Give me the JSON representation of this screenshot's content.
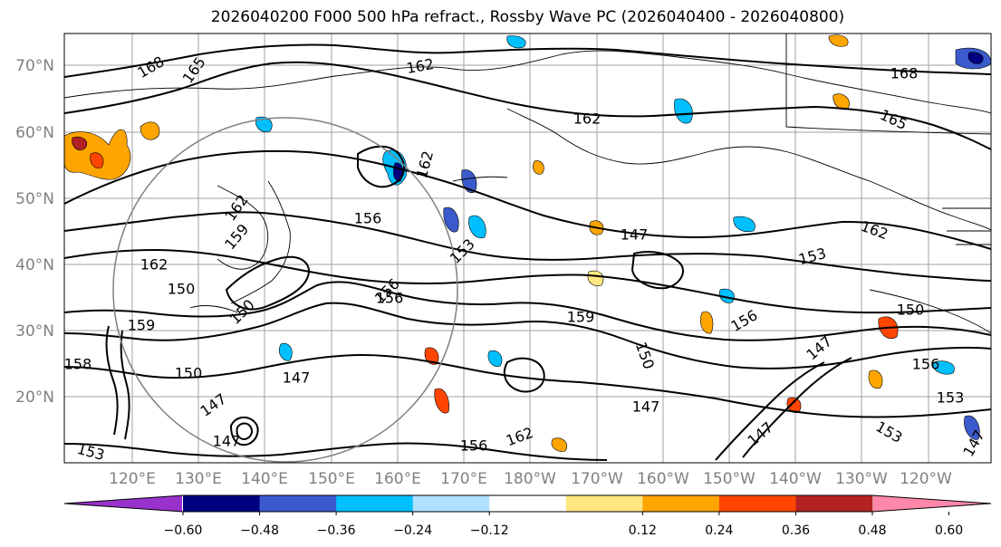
{
  "title": "2026040200 F000 500 hPa refract., Rossby Wave PC (2026040400 - 2026040800)",
  "lat_labels": [
    "70°N",
    "60°N",
    "50°N",
    "40°N",
    "30°N",
    "20°N"
  ],
  "lon_labels": [
    "120°E",
    "130°E",
    "140°E",
    "150°E",
    "160°E",
    "170°E",
    "180°W",
    "170°W",
    "160°W",
    "150°W",
    "140°W",
    "130°W",
    "120°W"
  ],
  "contour_labels": [
    "168",
    "165",
    "162",
    "162",
    "168",
    "165",
    "162",
    "162",
    "162",
    "159",
    "156",
    "153",
    "162",
    "153",
    "150",
    "159",
    "156",
    "150",
    "156",
    "150",
    "153",
    "156",
    "150",
    "147",
    "147",
    "147",
    "147",
    "153",
    "156",
    "162",
    "147",
    "153",
    "147",
    "150",
    "156",
    "147",
    "147",
    "159",
    "158"
  ],
  "colorbar": {
    "ticks": [
      "−0.60",
      "−0.48",
      "−0.36",
      "−0.24",
      "−0.12",
      "0.12",
      "0.24",
      "0.36",
      "0.48",
      "0.60"
    ],
    "colors": {
      "under": "#9932cc",
      "bins": [
        "#000080",
        "#3b5bcc",
        "#00bfff",
        "#b0e0ff",
        "#ffffff",
        "#ffe680",
        "#ffa500",
        "#ff4500",
        "#b22222"
      ],
      "over": "#ff88aa"
    }
  },
  "overlay": "great-circle"
}
